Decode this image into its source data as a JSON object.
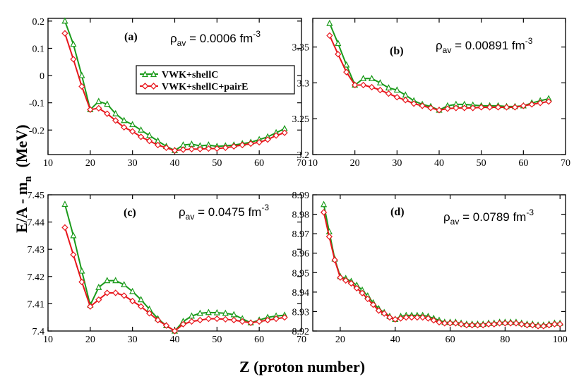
{
  "figure": {
    "ylabel": "E/A - m",
    "ylabel_sub": "n",
    "ylabel_unit": "(MeV)",
    "xlabel": "Z  (proton number)"
  },
  "legend": {
    "entries": [
      "VWK+shellC",
      "VWK+shellC+pairE"
    ]
  },
  "chart_data": [
    {
      "type": "line",
      "label": "(a)",
      "rho_symbol": "ρ",
      "rho_sub": "av",
      "rho_value": " = 0.0006 fm",
      "rho_exp": "-3",
      "xlim": [
        10,
        70
      ],
      "ylim": [
        -0.29,
        0.21
      ],
      "xticks": [
        10,
        20,
        30,
        40,
        50,
        60,
        70
      ],
      "yticks": [
        -0.2,
        -0.1,
        0,
        0.1,
        0.2
      ],
      "ytick_labels": [
        "-0.2",
        "-0.1",
        "0",
        "0.1",
        "0.2"
      ],
      "x": [
        14,
        16,
        18,
        20,
        22,
        24,
        26,
        28,
        30,
        32,
        34,
        36,
        38,
        40,
        42,
        44,
        46,
        48,
        50,
        52,
        54,
        56,
        58,
        60,
        62,
        64,
        66
      ],
      "series": [
        {
          "name": "VWK+shellC",
          "color": "#1a9a1a",
          "marker": "triangle",
          "values": [
            0.2,
            0.115,
            0.0,
            -0.125,
            -0.095,
            -0.105,
            -0.14,
            -0.165,
            -0.18,
            -0.2,
            -0.22,
            -0.24,
            -0.26,
            -0.275,
            -0.255,
            -0.252,
            -0.258,
            -0.255,
            -0.26,
            -0.258,
            -0.255,
            -0.25,
            -0.245,
            -0.235,
            -0.225,
            -0.21,
            -0.195
          ]
        },
        {
          "name": "VWK+shellC+pairE",
          "color": "#e8161c",
          "marker": "diamond",
          "values": [
            0.155,
            0.06,
            -0.04,
            -0.125,
            -0.12,
            -0.14,
            -0.165,
            -0.19,
            -0.205,
            -0.225,
            -0.24,
            -0.255,
            -0.265,
            -0.275,
            -0.272,
            -0.27,
            -0.27,
            -0.268,
            -0.268,
            -0.265,
            -0.26,
            -0.255,
            -0.25,
            -0.245,
            -0.235,
            -0.22,
            -0.21
          ]
        }
      ]
    },
    {
      "type": "line",
      "label": "(b)",
      "rho_symbol": "ρ",
      "rho_sub": "av",
      "rho_value": " = 0.00891 fm",
      "rho_exp": "-3",
      "xlim": [
        10,
        70
      ],
      "ylim": [
        3.2,
        3.39
      ],
      "xticks": [
        10,
        20,
        30,
        40,
        50,
        60,
        70
      ],
      "yticks": [
        3.2,
        3.25,
        3.3,
        3.35
      ],
      "ytick_labels": [
        "3.2",
        "3.25",
        "3.3",
        "3.35"
      ],
      "x": [
        14,
        16,
        18,
        20,
        22,
        24,
        26,
        28,
        30,
        32,
        34,
        36,
        38,
        40,
        42,
        44,
        46,
        48,
        50,
        52,
        54,
        56,
        58,
        60,
        62,
        64,
        66
      ],
      "series": [
        {
          "name": "VWK+shellC",
          "color": "#1a9a1a",
          "marker": "triangle",
          "values": [
            3.383,
            3.355,
            3.325,
            3.297,
            3.306,
            3.306,
            3.3,
            3.293,
            3.29,
            3.283,
            3.275,
            3.27,
            3.267,
            3.262,
            3.268,
            3.27,
            3.27,
            3.269,
            3.268,
            3.268,
            3.268,
            3.267,
            3.267,
            3.268,
            3.272,
            3.275,
            3.278
          ]
        },
        {
          "name": "VWK+shellC+pairE",
          "color": "#e8161c",
          "marker": "diamond",
          "values": [
            3.366,
            3.34,
            3.315,
            3.297,
            3.297,
            3.294,
            3.29,
            3.285,
            3.28,
            3.276,
            3.271,
            3.268,
            3.265,
            3.262,
            3.264,
            3.265,
            3.265,
            3.265,
            3.266,
            3.266,
            3.266,
            3.266,
            3.266,
            3.268,
            3.27,
            3.272,
            3.274
          ]
        }
      ]
    },
    {
      "type": "line",
      "label": "(c)",
      "rho_symbol": "ρ",
      "rho_sub": "av",
      "rho_value": " = 0.0475 fm",
      "rho_exp": "-3",
      "xlim": [
        10,
        70
      ],
      "ylim": [
        7.4,
        7.45
      ],
      "xticks": [
        10,
        20,
        30,
        40,
        50,
        60,
        70
      ],
      "yticks": [
        7.4,
        7.41,
        7.42,
        7.43,
        7.44,
        7.45
      ],
      "ytick_labels": [
        "7.4",
        "7.41",
        "7.42",
        "7.43",
        "7.44",
        "7.45"
      ],
      "x": [
        14,
        16,
        18,
        20,
        22,
        24,
        26,
        28,
        30,
        32,
        34,
        36,
        38,
        40,
        42,
        44,
        46,
        48,
        50,
        52,
        54,
        56,
        58,
        60,
        62,
        64,
        66
      ],
      "series": [
        {
          "name": "VWK+shellC",
          "color": "#1a9a1a",
          "marker": "triangle",
          "values": [
            7.4465,
            7.435,
            7.422,
            7.4095,
            7.416,
            7.4185,
            7.4185,
            7.417,
            7.4145,
            7.4115,
            7.408,
            7.4045,
            7.402,
            7.4,
            7.4035,
            7.4055,
            7.4065,
            7.4068,
            7.4067,
            7.4065,
            7.406,
            7.4045,
            7.403,
            7.404,
            7.405,
            7.4055,
            7.4058
          ]
        },
        {
          "name": "VWK+shellC+pairE",
          "color": "#e8161c",
          "marker": "diamond",
          "values": [
            7.438,
            7.428,
            7.418,
            7.409,
            7.4115,
            7.414,
            7.414,
            7.413,
            7.411,
            7.409,
            7.4065,
            7.404,
            7.402,
            7.4,
            7.4025,
            7.4035,
            7.404,
            7.4045,
            7.4045,
            7.4043,
            7.404,
            7.4035,
            7.403,
            7.4035,
            7.404,
            7.4045,
            7.405
          ]
        }
      ]
    },
    {
      "type": "line",
      "label": "(d)",
      "rho_symbol": "ρ",
      "rho_sub": "av",
      "rho_value": " = 0.0789 fm",
      "rho_exp": "-3",
      "xlim": [
        10,
        102
      ],
      "ylim": [
        8.92,
        8.99
      ],
      "xticks": [
        20,
        40,
        60,
        80,
        100
      ],
      "yticks": [
        8.92,
        8.93,
        8.94,
        8.95,
        8.96,
        8.97,
        8.98,
        8.99
      ],
      "ytick_labels": [
        "8.92",
        "8.93",
        "8.94",
        "8.95",
        "8.96",
        "8.97",
        "8.98",
        "8.99"
      ],
      "x": [
        14,
        16,
        18,
        20,
        22,
        24,
        26,
        28,
        30,
        32,
        34,
        36,
        38,
        40,
        42,
        44,
        46,
        48,
        50,
        52,
        54,
        56,
        58,
        60,
        62,
        64,
        66,
        68,
        70,
        72,
        74,
        76,
        78,
        80,
        82,
        84,
        86,
        88,
        90,
        92,
        94,
        96,
        98,
        100
      ],
      "series": [
        {
          "name": "VWK+shellC",
          "color": "#1a9a1a",
          "marker": "triangle",
          "values": [
            8.985,
            8.971,
            8.957,
            8.948,
            8.947,
            8.9455,
            8.9435,
            8.941,
            8.938,
            8.9345,
            8.9315,
            8.9295,
            8.9275,
            8.926,
            8.9275,
            8.928,
            8.928,
            8.928,
            8.928,
            8.9275,
            8.9265,
            8.9255,
            8.9245,
            8.9245,
            8.9245,
            8.924,
            8.9235,
            8.9235,
            8.9235,
            8.9235,
            8.924,
            8.924,
            8.9245,
            8.9245,
            8.9245,
            8.9245,
            8.924,
            8.9235,
            8.9235,
            8.923,
            8.923,
            8.9235,
            8.924,
            8.924
          ]
        },
        {
          "name": "VWK+shellC+pairE",
          "color": "#e8161c",
          "marker": "diamond",
          "values": [
            8.981,
            8.9685,
            8.9565,
            8.9475,
            8.946,
            8.9445,
            8.942,
            8.9395,
            8.9365,
            8.9335,
            8.9305,
            8.929,
            8.927,
            8.926,
            8.9265,
            8.927,
            8.927,
            8.927,
            8.927,
            8.9265,
            8.9255,
            8.9245,
            8.924,
            8.924,
            8.924,
            8.9235,
            8.923,
            8.923,
            8.923,
            8.923,
            8.9235,
            8.9235,
            8.924,
            8.924,
            8.924,
            8.924,
            8.9235,
            8.923,
            8.923,
            8.9225,
            8.9225,
            8.923,
            8.9235,
            8.9235
          ]
        }
      ]
    }
  ]
}
